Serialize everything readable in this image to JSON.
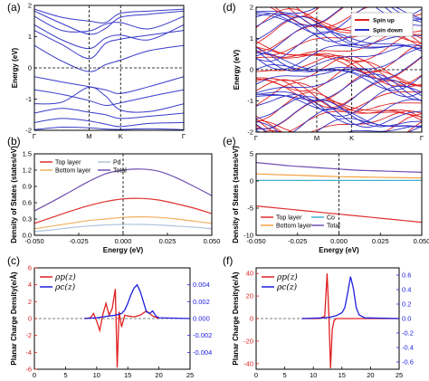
{
  "chart_data": [
    {
      "panel": "(a)",
      "type": "line",
      "xlabel": "",
      "ylabel": "Energy (eV)",
      "ylim": [
        -2,
        2
      ],
      "y_ticks": [
        "-2",
        "-1",
        "0",
        "1",
        "2"
      ],
      "x_tick_labels": [
        "Γ",
        "M",
        "K",
        "Γ"
      ],
      "x_tick_positions": [
        0,
        1,
        1.577,
        2.732
      ],
      "series_color": "#3b3bcc",
      "bands": [
        [
          [
            0,
            1.88
          ],
          [
            0.5,
            1.62
          ],
          [
            1,
            1.5
          ],
          [
            1.3,
            1.45
          ],
          [
            1.577,
            1.75
          ],
          [
            2.1,
            1.82
          ],
          [
            2.732,
            1.88
          ]
        ],
        [
          [
            0,
            1.82
          ],
          [
            0.5,
            1.42
          ],
          [
            1,
            1.08
          ],
          [
            1.3,
            1.26
          ],
          [
            1.577,
            1.62
          ],
          [
            2.1,
            1.72
          ],
          [
            2.732,
            1.82
          ]
        ],
        [
          [
            0,
            1.65
          ],
          [
            0.5,
            1.2
          ],
          [
            1,
            1.18
          ],
          [
            1.3,
            1.4
          ],
          [
            1.577,
            1.45
          ],
          [
            2.1,
            1.25
          ],
          [
            2.732,
            1.65
          ]
        ],
        [
          [
            0,
            1.38
          ],
          [
            0.5,
            0.9
          ],
          [
            1,
            0.62
          ],
          [
            1.3,
            0.95
          ],
          [
            1.577,
            1.05
          ],
          [
            2.1,
            0.9
          ],
          [
            2.732,
            1.38
          ]
        ],
        [
          [
            0,
            1.2
          ],
          [
            0.5,
            0.75
          ],
          [
            1,
            0.3
          ],
          [
            1.3,
            0.78
          ],
          [
            1.577,
            0.92
          ],
          [
            2.1,
            1.05
          ],
          [
            2.732,
            1.2
          ]
        ],
        [
          [
            0,
            0.72
          ],
          [
            0.5,
            0.22
          ],
          [
            1,
            -0.12
          ],
          [
            1.3,
            0.1
          ],
          [
            1.577,
            0.25
          ],
          [
            2.1,
            0.55
          ],
          [
            2.732,
            0.72
          ]
        ],
        [
          [
            0,
            -0.28
          ],
          [
            0.5,
            -0.45
          ],
          [
            1,
            -0.6
          ],
          [
            1.3,
            -0.7
          ],
          [
            1.577,
            -0.82
          ],
          [
            2.1,
            -0.6
          ],
          [
            2.732,
            -0.28
          ]
        ],
        [
          [
            0,
            -0.7
          ],
          [
            0.5,
            -0.85
          ],
          [
            1,
            -1.05
          ],
          [
            1.3,
            -1.2
          ],
          [
            1.577,
            -1.12
          ],
          [
            2.1,
            -0.92
          ],
          [
            2.732,
            -0.7
          ]
        ],
        [
          [
            0,
            -1.15
          ],
          [
            0.5,
            -1.1
          ],
          [
            1,
            -0.62
          ],
          [
            1.3,
            -0.9
          ],
          [
            1.577,
            -1.35
          ],
          [
            2.1,
            -1.4
          ],
          [
            2.732,
            -1.15
          ]
        ],
        [
          [
            0,
            -1.45
          ],
          [
            0.5,
            -1.3
          ],
          [
            1,
            -1.42
          ],
          [
            1.3,
            -1.5
          ],
          [
            1.577,
            -1.62
          ],
          [
            2.1,
            -1.55
          ],
          [
            2.732,
            -1.45
          ]
        ],
        [
          [
            0,
            -1.75
          ],
          [
            0.5,
            -1.62
          ],
          [
            1,
            -1.7
          ],
          [
            1.3,
            -1.8
          ],
          [
            1.577,
            -1.88
          ],
          [
            2.1,
            -1.78
          ],
          [
            2.732,
            -1.75
          ]
        ],
        [
          [
            0,
            -1.98
          ],
          [
            0.5,
            -1.9
          ],
          [
            1,
            -1.92
          ],
          [
            1.3,
            -1.96
          ],
          [
            1.577,
            -1.97
          ],
          [
            2.1,
            -1.95
          ],
          [
            2.732,
            -1.98
          ]
        ]
      ]
    },
    {
      "panel": "(d)",
      "type": "line",
      "xlabel": "",
      "ylabel": "Energy (eV)",
      "ylim": [
        -2,
        2
      ],
      "y_ticks": [
        "-2",
        "-1",
        "0",
        "1",
        "2"
      ],
      "x_tick_labels": [
        "Γ",
        "M",
        "K",
        "Γ"
      ],
      "x_tick_positions": [
        0,
        1,
        1.577,
        2.732
      ],
      "legend": [
        {
          "name": "Spin up",
          "color": "#e02020"
        },
        {
          "name": "Spin down",
          "color": "#3030c8"
        }
      ],
      "band_count_per_spin": 26
    },
    {
      "panel": "(b)",
      "type": "line",
      "xlabel": "Energy (eV)",
      "ylabel": "Density of States (states/eV)",
      "xlim": [
        -0.05,
        0.05
      ],
      "ylim": [
        0,
        1.5
      ],
      "x_ticks": [
        "-0.050",
        "-0.025",
        "0.000",
        "0.025",
        "0.050"
      ],
      "y_ticks": [
        "0.0",
        "0.3",
        "0.6",
        "0.9",
        "1.2",
        "1.5"
      ],
      "x": [
        -0.05,
        -0.04,
        -0.03,
        -0.02,
        -0.01,
        0.0,
        0.01,
        0.02,
        0.03,
        0.04,
        0.05
      ],
      "series": [
        {
          "name": "Top layer",
          "color": "#e03030",
          "values": [
            0.22,
            0.33,
            0.44,
            0.54,
            0.62,
            0.67,
            0.68,
            0.65,
            0.58,
            0.5,
            0.4
          ]
        },
        {
          "name": "Pd",
          "color": "#b0c4de",
          "values": [
            0.07,
            0.1,
            0.14,
            0.17,
            0.19,
            0.2,
            0.2,
            0.19,
            0.17,
            0.15,
            0.12
          ]
        },
        {
          "name": "Bottom layer",
          "color": "#f4b060",
          "values": [
            0.12,
            0.17,
            0.22,
            0.27,
            0.3,
            0.33,
            0.34,
            0.33,
            0.3,
            0.26,
            0.22
          ]
        },
        {
          "name": "Total",
          "color": "#7050b0",
          "values": [
            0.45,
            0.62,
            0.8,
            0.98,
            1.13,
            1.2,
            1.22,
            1.18,
            1.06,
            0.9,
            0.73
          ]
        }
      ]
    },
    {
      "panel": "(e)",
      "type": "line",
      "xlabel": "Energy (eV)",
      "ylabel": "Density of States (states/eV)",
      "xlim": [
        -0.05,
        0.05
      ],
      "ylim": [
        -10,
        5
      ],
      "x_ticks": [
        "-0.050",
        "-0.025",
        "0.000",
        "0.025",
        "0.050"
      ],
      "y_ticks": [
        "-10",
        "-5",
        "0",
        "5"
      ],
      "x": [
        -0.05,
        -0.04,
        -0.03,
        -0.02,
        -0.01,
        0.0,
        0.01,
        0.02,
        0.03,
        0.04,
        0.05
      ],
      "series": [
        {
          "name": "Top layer",
          "color": "#e03030",
          "values": [
            -4.6,
            -4.9,
            -5.2,
            -5.5,
            -5.8,
            -6.1,
            -6.4,
            -6.7,
            -7.0,
            -7.3,
            -7.6
          ]
        },
        {
          "name": "Co",
          "color": "#40b0d0",
          "values": [
            0.1,
            0.1,
            0.1,
            0.1,
            0.1,
            0.1,
            0.1,
            0.1,
            0.1,
            0.1,
            0.1
          ]
        },
        {
          "name": "Bottom layer",
          "color": "#f4a040",
          "values": [
            1.3,
            1.2,
            1.1,
            1.0,
            0.9,
            0.8,
            0.75,
            0.7,
            0.65,
            0.6,
            0.55
          ]
        },
        {
          "name": "Total",
          "color": "#7050b0",
          "values": [
            3.4,
            3.1,
            2.8,
            2.6,
            2.4,
            2.2,
            2.0,
            1.9,
            1.8,
            1.7,
            1.6
          ]
        }
      ]
    },
    {
      "panel": "(c)",
      "type": "line",
      "xlabel": "",
      "ylabel": "Planar Charge Density(e/Å)",
      "xlim": [
        0,
        25
      ],
      "ylim": [
        -6,
        6
      ],
      "y2lim": [
        -0.006,
        0.006
      ],
      "x_ticks": [
        "0",
        "5",
        "10",
        "15",
        "20",
        "25"
      ],
      "y_ticks": [
        "-6",
        "-4",
        "-2",
        "0",
        "2",
        "4",
        "6"
      ],
      "y2_ticks": [
        "-0.004",
        "-0.002",
        "0.000",
        "0.002",
        "0.004"
      ],
      "series": [
        {
          "name": "ρp(z)",
          "color": "#e02020",
          "axis": "left",
          "x": [
            8,
            9,
            9.5,
            10,
            10.5,
            11,
            11.5,
            12,
            12.5,
            13,
            13.3,
            13.6,
            14,
            14.5,
            15,
            16,
            17,
            18,
            19,
            20
          ],
          "values": [
            0,
            0.1,
            0.6,
            -0.3,
            -1.4,
            0.5,
            1.8,
            0.4,
            1.2,
            3.5,
            -5.8,
            0.8,
            -1.0,
            0.4,
            0.3,
            0.2,
            0.4,
            0.9,
            0.3,
            0
          ]
        },
        {
          "name": "ρc(z)",
          "color": "#2020e0",
          "axis": "right",
          "x": [
            8,
            10,
            11,
            12,
            13,
            14,
            14.5,
            15,
            15.5,
            16,
            16.5,
            17,
            17.5,
            18,
            18.5,
            19,
            19.5,
            20,
            25
          ],
          "values": [
            0,
            0.0001,
            0.0002,
            0.0003,
            0.0004,
            0.0006,
            0.001,
            0.0018,
            0.0028,
            0.0036,
            0.004,
            0.0032,
            0.002,
            0.0008,
            0.0006,
            0.0009,
            0.0003,
            0.0001,
            0
          ]
        }
      ]
    },
    {
      "panel": "(f)",
      "type": "line",
      "xlabel": "",
      "ylabel": "Planar Charge Density(e/Å)",
      "xlim": [
        0,
        25
      ],
      "ylim": [
        -45,
        45
      ],
      "y2lim": [
        -0.7,
        0.7
      ],
      "x_ticks": [
        "0",
        "5",
        "10",
        "15",
        "20",
        "25"
      ],
      "y_ticks": [
        "-40",
        "-20",
        "0",
        "20",
        "40"
      ],
      "y2_ticks": [
        "-0.6",
        "-0.4",
        "-0.2",
        "0.0",
        "0.2",
        "0.4",
        "0.6"
      ],
      "series": [
        {
          "name": "ρp(z)",
          "color": "#e02020",
          "axis": "left",
          "x": [
            8,
            11,
            12,
            12.4,
            12.7,
            13,
            13.3,
            13.6,
            14,
            15,
            25
          ],
          "values": [
            0,
            0,
            2,
            40,
            5,
            -44,
            -10,
            -2,
            0,
            0,
            0
          ]
        },
        {
          "name": "ρc(z)",
          "color": "#2020e0",
          "axis": "right",
          "x": [
            8,
            12,
            13,
            14,
            15,
            15.5,
            16,
            16.5,
            17,
            17.5,
            18,
            19,
            25
          ],
          "values": [
            0,
            0.01,
            0.02,
            0.04,
            0.08,
            0.15,
            0.35,
            0.58,
            0.42,
            0.15,
            0.05,
            0.01,
            0
          ]
        }
      ]
    }
  ]
}
